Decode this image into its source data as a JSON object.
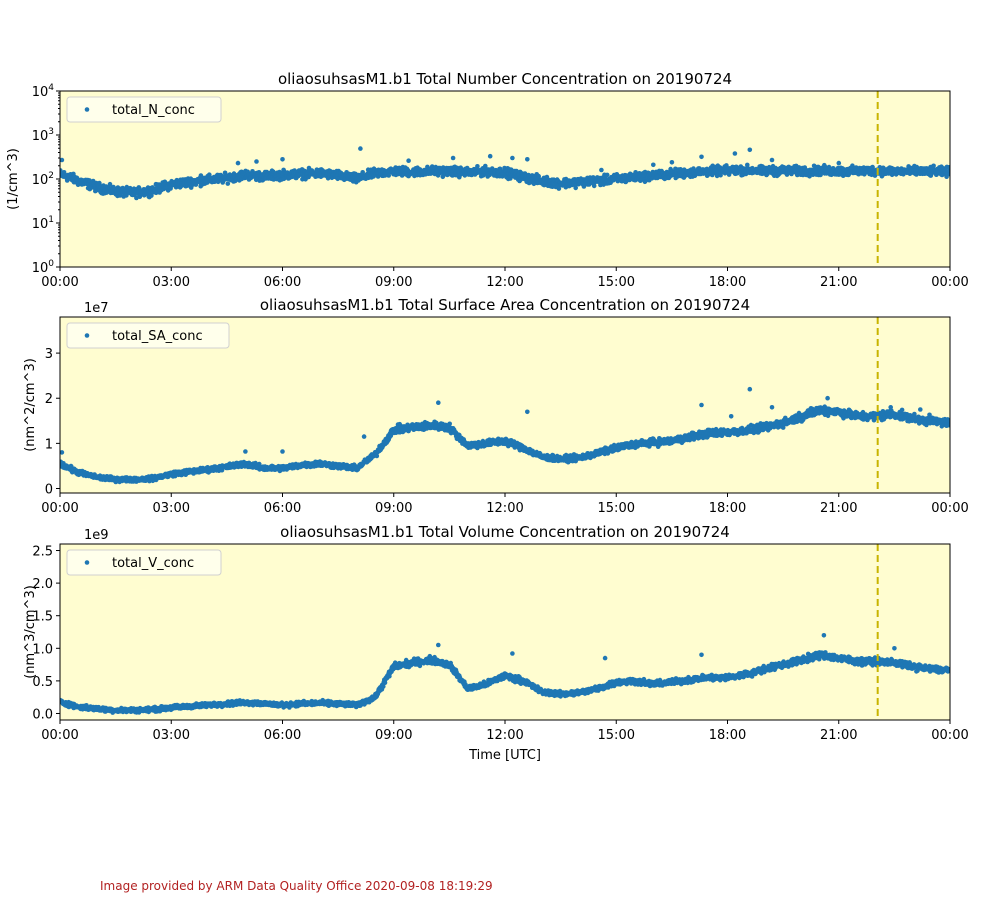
{
  "figure": {
    "background_color": "#ffffff",
    "plot_face_color": "#fffdd0",
    "marker_color": "#1f77b4",
    "marker_line_color": "#c8b400",
    "footer": "Image provided by ARM Data Quality Office 2020-09-08 18:19:29",
    "footer_color": "#b22222"
  },
  "chart_data": [
    {
      "type": "scatter",
      "title": "oliaosuhsasM1.b1 Total Number Concentration on 20190724",
      "xlabel": "",
      "ylabel": "(1/cm^3)",
      "yscale": "log",
      "ylim": [
        1,
        10000
      ],
      "xlim_hours": [
        0,
        24
      ],
      "x_tick_labels": [
        "00:00",
        "03:00",
        "06:00",
        "09:00",
        "12:00",
        "15:00",
        "18:00",
        "21:00",
        "00:00"
      ],
      "y_ticks": [
        1,
        10,
        100,
        1000,
        10000
      ],
      "y_tick_labels": [
        "10^0",
        "10^1",
        "10^2",
        "10^3",
        "10^4"
      ],
      "y_offset_label": "",
      "legend": "total_N_conc",
      "legend_position": "upper-left",
      "vline_hour": 22.05,
      "series_hours": [
        0,
        0.5,
        1,
        1.5,
        2,
        2.5,
        3,
        3.5,
        4,
        4.5,
        5,
        5.5,
        6,
        6.5,
        7,
        7.5,
        8,
        8.5,
        9,
        9.5,
        10,
        10.5,
        11,
        11.5,
        12,
        12.5,
        13,
        13.5,
        14,
        14.5,
        15,
        15.5,
        16,
        16.5,
        17,
        17.5,
        18,
        18.5,
        19,
        19.5,
        20,
        20.5,
        21,
        21.5,
        22,
        22.5,
        23,
        23.5,
        24
      ],
      "series_values": [
        130,
        90,
        65,
        52,
        48,
        55,
        75,
        85,
        95,
        105,
        125,
        115,
        125,
        130,
        135,
        120,
        100,
        135,
        150,
        145,
        150,
        150,
        140,
        150,
        140,
        110,
        90,
        80,
        85,
        90,
        100,
        110,
        120,
        130,
        140,
        150,
        155,
        160,
        150,
        155,
        150,
        155,
        150,
        150,
        155,
        150,
        150,
        148,
        145
      ],
      "spread_log10": 0.15,
      "spikes": [
        [
          0.05,
          270
        ],
        [
          3.8,
          120
        ],
        [
          4.8,
          230
        ],
        [
          5.3,
          250
        ],
        [
          6.0,
          280
        ],
        [
          8.1,
          490
        ],
        [
          9.4,
          260
        ],
        [
          10.6,
          300
        ],
        [
          11.6,
          330
        ],
        [
          12.2,
          300
        ],
        [
          12.6,
          280
        ],
        [
          14.6,
          160
        ],
        [
          16.0,
          210
        ],
        [
          16.5,
          240
        ],
        [
          17.3,
          320
        ],
        [
          18.2,
          380
        ],
        [
          18.6,
          460
        ],
        [
          19.2,
          270
        ],
        [
          21.0,
          230
        ]
      ]
    },
    {
      "type": "scatter",
      "title": "oliaosuhsasM1.b1 Total Surface Area Concentration on 20190724",
      "xlabel": "",
      "ylabel": "(nm^2/cm^3)",
      "yscale": "linear",
      "ylim": [
        -0.1,
        3.8
      ],
      "xlim_hours": [
        0,
        24
      ],
      "x_tick_labels": [
        "00:00",
        "03:00",
        "06:00",
        "09:00",
        "12:00",
        "15:00",
        "18:00",
        "21:00",
        "00:00"
      ],
      "y_ticks": [
        0,
        1,
        2,
        3
      ],
      "y_tick_labels": [
        "0",
        "1",
        "2",
        "3"
      ],
      "y_offset_label": "1e7",
      "legend": "total_SA_conc",
      "legend_position": "upper-left",
      "vline_hour": 22.05,
      "series_hours": [
        0,
        0.5,
        1,
        1.5,
        2,
        2.5,
        3,
        3.5,
        4,
        4.5,
        5,
        5.5,
        6,
        6.5,
        7,
        7.5,
        8,
        8.5,
        9,
        9.5,
        10,
        10.5,
        11,
        11.5,
        12,
        12.5,
        13,
        13.5,
        14,
        14.5,
        15,
        15.5,
        16,
        16.5,
        17,
        17.5,
        18,
        18.5,
        19,
        19.5,
        20,
        20.5,
        21,
        21.5,
        22,
        22.5,
        23,
        23.5,
        24
      ],
      "series_values": [
        0.55,
        0.35,
        0.25,
        0.2,
        0.2,
        0.22,
        0.32,
        0.37,
        0.42,
        0.48,
        0.55,
        0.45,
        0.45,
        0.52,
        0.55,
        0.5,
        0.45,
        0.75,
        1.3,
        1.35,
        1.4,
        1.35,
        0.95,
        1.0,
        1.05,
        0.9,
        0.7,
        0.65,
        0.68,
        0.78,
        0.9,
        0.98,
        1.02,
        1.05,
        1.15,
        1.22,
        1.25,
        1.28,
        1.35,
        1.45,
        1.6,
        1.75,
        1.7,
        1.6,
        1.6,
        1.65,
        1.55,
        1.5,
        1.45
      ],
      "spread_abs": 0.12,
      "spikes": [
        [
          0.05,
          0.8
        ],
        [
          5.0,
          0.82
        ],
        [
          6.0,
          0.82
        ],
        [
          8.2,
          1.15
        ],
        [
          10.2,
          1.9
        ],
        [
          12.6,
          1.7
        ],
        [
          16.0,
          1.1
        ],
        [
          17.3,
          1.85
        ],
        [
          18.1,
          1.6
        ],
        [
          18.6,
          2.2
        ],
        [
          19.2,
          1.8
        ],
        [
          20.7,
          2.0
        ],
        [
          22.4,
          1.8
        ],
        [
          23.2,
          1.75
        ]
      ]
    },
    {
      "type": "scatter",
      "title": "oliaosuhsasM1.b1 Total Volume Concentration on 20190724",
      "xlabel": "Time [UTC]",
      "ylabel": "(nm^3/cm^3)",
      "yscale": "linear",
      "ylim": [
        -0.1,
        2.6
      ],
      "xlim_hours": [
        0,
        24
      ],
      "x_tick_labels": [
        "00:00",
        "03:00",
        "06:00",
        "09:00",
        "12:00",
        "15:00",
        "18:00",
        "21:00",
        "00:00"
      ],
      "y_ticks": [
        0.0,
        0.5,
        1.0,
        1.5,
        2.0,
        2.5
      ],
      "y_tick_labels": [
        "0.0",
        "0.5",
        "1.0",
        "1.5",
        "2.0",
        "2.5"
      ],
      "y_offset_label": "1e9",
      "legend": "total_V_conc",
      "legend_position": "upper-left",
      "vline_hour": 22.05,
      "series_hours": [
        0,
        0.5,
        1,
        1.5,
        2,
        2.5,
        3,
        3.5,
        4,
        4.5,
        5,
        5.5,
        6,
        6.5,
        7,
        7.5,
        8,
        8.5,
        9,
        9.5,
        10,
        10.5,
        11,
        11.5,
        12,
        12.5,
        13,
        13.5,
        14,
        14.5,
        15,
        15.5,
        16,
        16.5,
        17,
        17.5,
        18,
        18.5,
        19,
        19.5,
        20,
        20.5,
        21,
        21.5,
        22,
        22.5,
        23,
        23.5,
        24
      ],
      "series_values": [
        0.18,
        0.1,
        0.07,
        0.05,
        0.05,
        0.06,
        0.09,
        0.11,
        0.13,
        0.15,
        0.17,
        0.15,
        0.13,
        0.15,
        0.16,
        0.15,
        0.13,
        0.25,
        0.72,
        0.78,
        0.82,
        0.75,
        0.38,
        0.45,
        0.58,
        0.5,
        0.33,
        0.3,
        0.32,
        0.38,
        0.48,
        0.5,
        0.45,
        0.48,
        0.52,
        0.55,
        0.55,
        0.6,
        0.68,
        0.75,
        0.82,
        0.9,
        0.85,
        0.8,
        0.8,
        0.78,
        0.72,
        0.68,
        0.66
      ],
      "spread_abs": 0.09,
      "spikes": [
        [
          10.2,
          1.05
        ],
        [
          12.2,
          0.92
        ],
        [
          14.7,
          0.85
        ],
        [
          17.3,
          0.9
        ],
        [
          20.6,
          1.2
        ],
        [
          22.5,
          1.0
        ]
      ]
    }
  ]
}
